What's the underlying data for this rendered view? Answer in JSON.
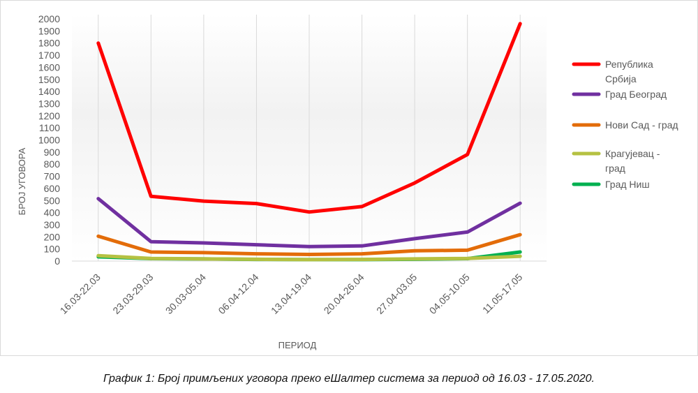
{
  "caption": "График 1: Број примљених уговора преко еШалтер система за период од 16.03 - 17.05.2020.",
  "chart_data": {
    "type": "line",
    "title": "",
    "xlabel": "ПЕРИОД",
    "ylabel": "БРОЈ УГОВОРА",
    "ylim": [
      0,
      2000
    ],
    "ytick_step": 100,
    "grid": "vertical",
    "legend_position": "right",
    "categories": [
      "16.03-22.03",
      "23.03-29.03",
      "30.03-05.04",
      "06.04-12.04",
      "13.04-19.04",
      "20.04-26.04",
      "27.04-03.05",
      "04.05-10.05",
      "11.05-17.05"
    ],
    "series": [
      {
        "name": "Република Србија",
        "color": "#ff0000",
        "values": [
          1800,
          535,
          495,
          475,
          405,
          450,
          645,
          880,
          1960
        ]
      },
      {
        "name": "Град Београд",
        "color": "#7030a0",
        "values": [
          515,
          160,
          150,
          135,
          120,
          125,
          185,
          240,
          478
        ]
      },
      {
        "name": "Нови Сад - град",
        "color": "#e36c09",
        "values": [
          205,
          75,
          70,
          60,
          55,
          60,
          85,
          90,
          218
        ]
      },
      {
        "name": "Крагујевац - град",
        "color": "#b5c142",
        "values": [
          45,
          22,
          18,
          15,
          12,
          14,
          18,
          22,
          40
        ]
      },
      {
        "name": "Град Ниш",
        "color": "#00b050",
        "values": [
          35,
          20,
          18,
          14,
          12,
          12,
          15,
          20,
          75
        ]
      }
    ]
  }
}
